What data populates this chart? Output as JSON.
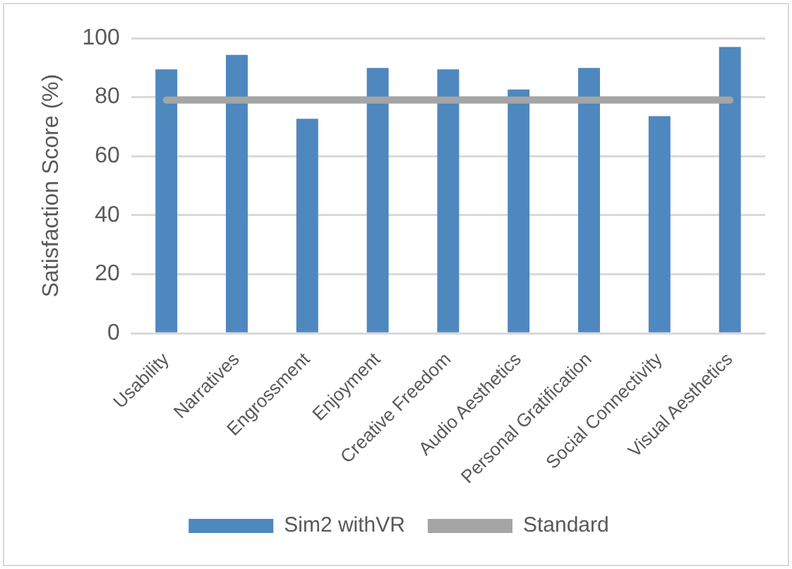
{
  "chart_data": {
    "type": "bar",
    "ylabel": "Satisfaction Score (%)",
    "categories": [
      "Usability",
      "Narratives",
      "Engrossment",
      "Enjoyment",
      "Creative Freedom",
      "Audio Aesthetics",
      "Personal Gratification",
      "Social Connectivity",
      "Visual Aesthetics"
    ],
    "series": [
      {
        "name": "Sim2 withVR",
        "color": "#4f87bf",
        "values": [
          89.4,
          94.3,
          72.7,
          89.9,
          89.4,
          82.6,
          89.9,
          73.6,
          97
        ]
      },
      {
        "name": "Standard",
        "type": "line",
        "color": "#a5a5a5",
        "values": [
          79,
          79,
          79,
          79,
          79,
          79,
          79,
          79,
          79
        ]
      }
    ],
    "ylim": [
      0,
      100
    ],
    "yticks": [
      0,
      20,
      40,
      60,
      80,
      100
    ],
    "grid": "y",
    "legend": "bottom",
    "marker": "none"
  }
}
